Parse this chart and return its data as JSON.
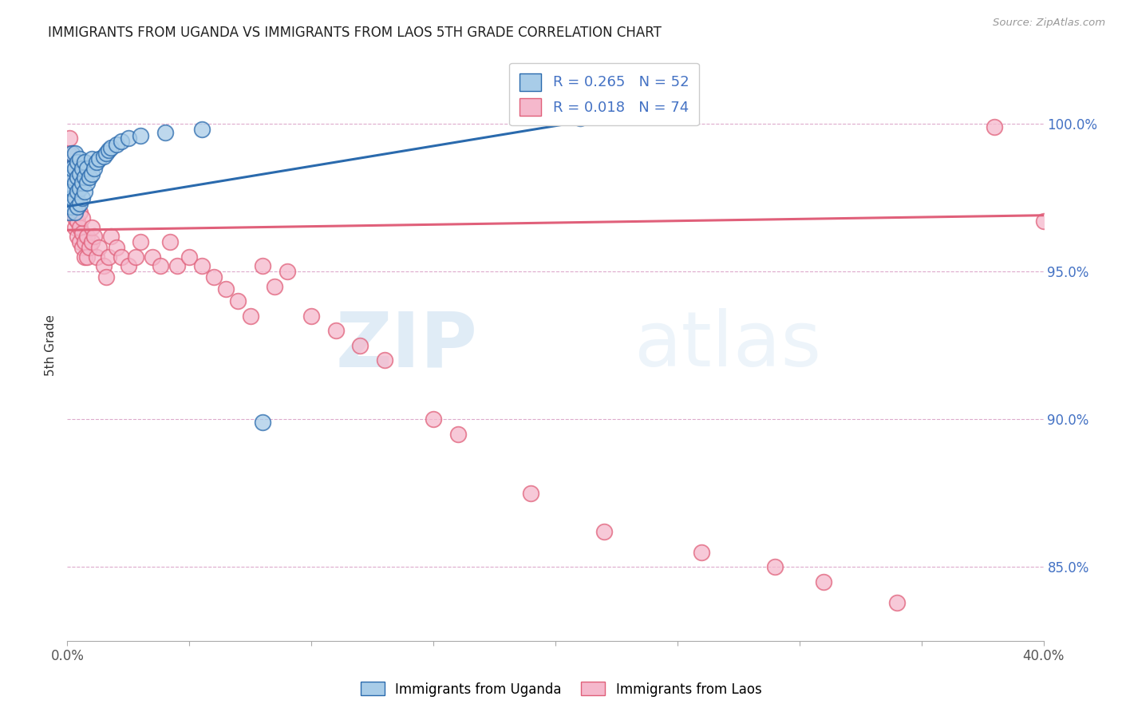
{
  "title": "IMMIGRANTS FROM UGANDA VS IMMIGRANTS FROM LAOS 5TH GRADE CORRELATION CHART",
  "source": "Source: ZipAtlas.com",
  "ylabel": "5th Grade",
  "ytick_labels": [
    "100.0%",
    "95.0%",
    "90.0%",
    "85.0%"
  ],
  "ytick_values": [
    1.0,
    0.95,
    0.9,
    0.85
  ],
  "xlim": [
    0.0,
    0.4
  ],
  "ylim": [
    0.825,
    1.025
  ],
  "blue_color": "#a8cce8",
  "pink_color": "#f5b8cc",
  "line_blue": "#2a6aad",
  "line_pink": "#e0607a",
  "legend_r1": "R = 0.265",
  "legend_n1": "N = 52",
  "legend_r2": "R = 0.018",
  "legend_n2": "N = 74",
  "uganda_x": [
    0.0005,
    0.0008,
    0.001,
    0.001,
    0.001,
    0.001,
    0.0015,
    0.0015,
    0.002,
    0.002,
    0.002,
    0.002,
    0.002,
    0.003,
    0.003,
    0.003,
    0.003,
    0.003,
    0.004,
    0.004,
    0.004,
    0.004,
    0.005,
    0.005,
    0.005,
    0.005,
    0.006,
    0.006,
    0.006,
    0.007,
    0.007,
    0.007,
    0.008,
    0.008,
    0.009,
    0.01,
    0.01,
    0.011,
    0.012,
    0.013,
    0.015,
    0.016,
    0.017,
    0.018,
    0.02,
    0.022,
    0.025,
    0.03,
    0.04,
    0.055,
    0.08,
    0.21
  ],
  "uganda_y": [
    0.975,
    0.978,
    0.97,
    0.975,
    0.98,
    0.985,
    0.972,
    0.978,
    0.975,
    0.978,
    0.982,
    0.985,
    0.99,
    0.97,
    0.975,
    0.98,
    0.985,
    0.99,
    0.972,
    0.977,
    0.982,
    0.987,
    0.973,
    0.978,
    0.983,
    0.988,
    0.975,
    0.98,
    0.985,
    0.977,
    0.982,
    0.987,
    0.98,
    0.985,
    0.982,
    0.983,
    0.988,
    0.985,
    0.987,
    0.988,
    0.989,
    0.99,
    0.991,
    0.992,
    0.993,
    0.994,
    0.995,
    0.996,
    0.997,
    0.998,
    0.899,
    1.002
  ],
  "laos_x": [
    0.0003,
    0.0005,
    0.0008,
    0.001,
    0.001,
    0.001,
    0.0012,
    0.0015,
    0.0015,
    0.002,
    0.002,
    0.002,
    0.002,
    0.003,
    0.003,
    0.003,
    0.003,
    0.003,
    0.004,
    0.004,
    0.004,
    0.004,
    0.005,
    0.005,
    0.005,
    0.006,
    0.006,
    0.006,
    0.007,
    0.007,
    0.008,
    0.008,
    0.009,
    0.01,
    0.01,
    0.011,
    0.012,
    0.013,
    0.015,
    0.016,
    0.017,
    0.018,
    0.02,
    0.022,
    0.025,
    0.028,
    0.03,
    0.035,
    0.038,
    0.042,
    0.045,
    0.05,
    0.055,
    0.06,
    0.065,
    0.07,
    0.075,
    0.08,
    0.085,
    0.09,
    0.1,
    0.11,
    0.12,
    0.13,
    0.15,
    0.16,
    0.19,
    0.22,
    0.26,
    0.29,
    0.31,
    0.34,
    0.38,
    0.4
  ],
  "laos_y": [
    0.985,
    0.99,
    0.995,
    0.975,
    0.98,
    0.985,
    0.972,
    0.978,
    0.983,
    0.97,
    0.975,
    0.98,
    0.985,
    0.965,
    0.97,
    0.975,
    0.98,
    0.968,
    0.962,
    0.967,
    0.972,
    0.977,
    0.96,
    0.965,
    0.97,
    0.958,
    0.963,
    0.968,
    0.955,
    0.96,
    0.955,
    0.962,
    0.958,
    0.96,
    0.965,
    0.962,
    0.955,
    0.958,
    0.952,
    0.948,
    0.955,
    0.962,
    0.958,
    0.955,
    0.952,
    0.955,
    0.96,
    0.955,
    0.952,
    0.96,
    0.952,
    0.955,
    0.952,
    0.948,
    0.944,
    0.94,
    0.935,
    0.952,
    0.945,
    0.95,
    0.935,
    0.93,
    0.925,
    0.92,
    0.9,
    0.895,
    0.875,
    0.862,
    0.855,
    0.85,
    0.845,
    0.838,
    0.999,
    0.967
  ],
  "ug_trend_x": [
    0.0,
    0.22
  ],
  "ug_trend_y": [
    0.972,
    1.002
  ],
  "laos_trend_x": [
    0.0,
    0.4
  ],
  "laos_trend_y": [
    0.964,
    0.969
  ]
}
